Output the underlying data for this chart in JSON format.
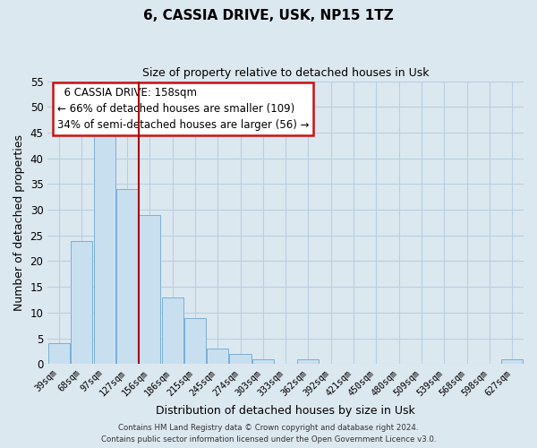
{
  "title": "6, CASSIA DRIVE, USK, NP15 1TZ",
  "subtitle": "Size of property relative to detached houses in Usk",
  "xlabel": "Distribution of detached houses by size in Usk",
  "ylabel": "Number of detached properties",
  "bar_color": "#c8dff0",
  "bar_edge_color": "#7bafd4",
  "bins": [
    "39sqm",
    "68sqm",
    "97sqm",
    "127sqm",
    "156sqm",
    "186sqm",
    "215sqm",
    "245sqm",
    "274sqm",
    "303sqm",
    "333sqm",
    "362sqm",
    "392sqm",
    "421sqm",
    "450sqm",
    "480sqm",
    "509sqm",
    "539sqm",
    "568sqm",
    "598sqm",
    "627sqm"
  ],
  "values": [
    4,
    24,
    45,
    34,
    29,
    13,
    9,
    3,
    2,
    1,
    0,
    1,
    0,
    0,
    0,
    0,
    0,
    0,
    0,
    0,
    1
  ],
  "vline_x_index": 3,
  "vline_color": "#aa0000",
  "annotation_title": "6 CASSIA DRIVE: 158sqm",
  "annotation_line1": "← 66% of detached houses are smaller (109)",
  "annotation_line2": "34% of semi-detached houses are larger (56) →",
  "ylim": [
    0,
    55
  ],
  "yticks": [
    0,
    5,
    10,
    15,
    20,
    25,
    30,
    35,
    40,
    45,
    50,
    55
  ],
  "footer_line1": "Contains HM Land Registry data © Crown copyright and database right 2024.",
  "footer_line2": "Contains public sector information licensed under the Open Government Licence v3.0.",
  "background_color": "#dce8f0",
  "plot_bg_color": "#dce8f0",
  "grid_color": "#b8cfe0"
}
